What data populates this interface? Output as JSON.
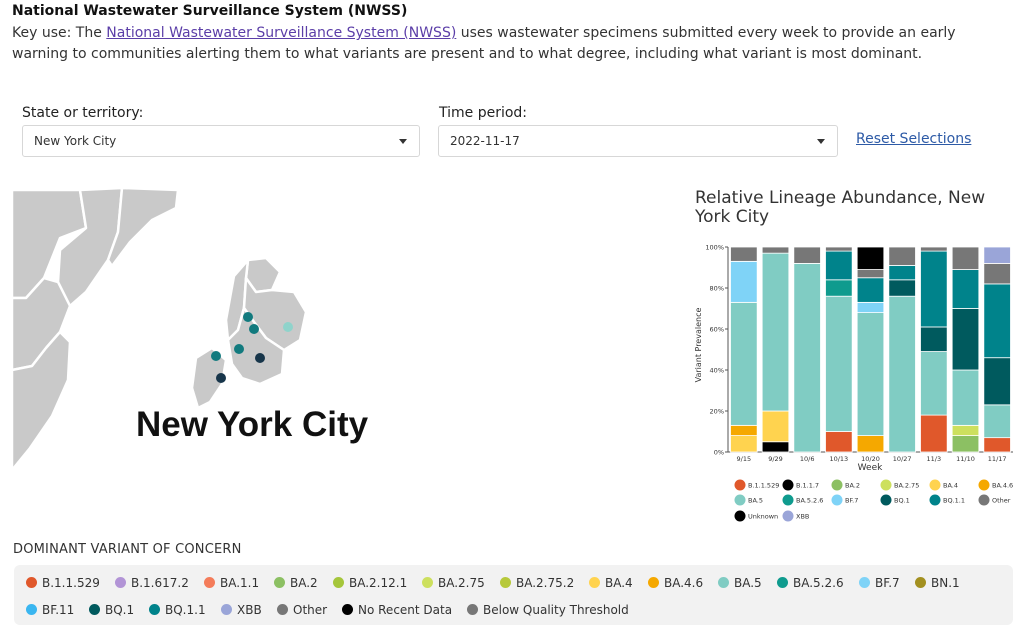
{
  "header": {
    "title": "National Wastewater Surveillance System (NWSS)",
    "keyuse_prefix": "Key use: The ",
    "keyuse_link": "National Wastewater Surveillance System (NWSS)",
    "keyuse_suffix": " uses wastewater specimens submitted every week to provide an early warning to communities alerting them to what variants are present and to what degree, including what variant is most dominant."
  },
  "filters": {
    "state_label": "State or territory:",
    "state_value": "New York City",
    "time_label": "Time period:",
    "time_value": "2022-11-17",
    "reset_label": "Reset Selections"
  },
  "map": {
    "city_label": "New York City",
    "site_markers": [
      "#127a7e",
      "#127a7e",
      "#8fd3cb",
      "#127a7e",
      "#127a7e",
      "#17354a",
      "#17354a"
    ]
  },
  "chart_title": "Relative Lineage Abundance, New York City",
  "chart_data": {
    "type": "bar",
    "stacked": true,
    "xlabel": "Week",
    "ylabel": "Variant Prevalence",
    "ylim": [
      0,
      100
    ],
    "yticks": [
      "0%",
      "20%",
      "40%",
      "60%",
      "80%",
      "100%"
    ],
    "categories": [
      "9/15",
      "9/29",
      "10/6",
      "10/13",
      "10/20",
      "10/27",
      "11/3",
      "11/10",
      "11/17"
    ],
    "series": [
      {
        "name": "B.1.1.529",
        "color": "#e0582b",
        "values": [
          0,
          0,
          0,
          10,
          0,
          0,
          18,
          0,
          7
        ]
      },
      {
        "name": "B.1.1.7",
        "color": "#000000",
        "values": [
          0,
          5,
          0,
          0,
          0,
          0,
          0,
          0,
          0
        ]
      },
      {
        "name": "BA.2",
        "color": "#8cc063",
        "values": [
          0,
          0,
          0,
          0,
          0,
          0,
          0,
          8,
          0
        ]
      },
      {
        "name": "BA.2.75",
        "color": "#cde05e",
        "values": [
          0,
          0,
          0,
          0,
          0,
          0,
          0,
          5,
          0
        ]
      },
      {
        "name": "BA.4",
        "color": "#ffd34f",
        "values": [
          8,
          15,
          0,
          0,
          0,
          0,
          0,
          0,
          0
        ]
      },
      {
        "name": "BA.4.6",
        "color": "#f5a800",
        "values": [
          5,
          0,
          0,
          0,
          8,
          0,
          0,
          0,
          0
        ]
      },
      {
        "name": "BA.5",
        "color": "#80ccc3",
        "values": [
          60,
          77,
          92,
          66,
          60,
          76,
          31,
          27,
          16
        ]
      },
      {
        "name": "BA.5.2.6",
        "color": "#0f9b8e",
        "values": [
          0,
          0,
          0,
          8,
          0,
          0,
          0,
          0,
          0
        ]
      },
      {
        "name": "BF.7",
        "color": "#7fd3f7",
        "values": [
          20,
          0,
          0,
          0,
          5,
          0,
          0,
          0,
          0
        ]
      },
      {
        "name": "BQ.1",
        "color": "#005a5e",
        "values": [
          0,
          0,
          0,
          0,
          0,
          8,
          12,
          30,
          23
        ]
      },
      {
        "name": "BQ.1.1",
        "color": "#00838b",
        "values": [
          0,
          0,
          0,
          14,
          12,
          7,
          37,
          19,
          36
        ]
      },
      {
        "name": "Other",
        "color": "#777777",
        "values": [
          7,
          3,
          8,
          2,
          4,
          9,
          2,
          11,
          10
        ]
      },
      {
        "name": "Unknown",
        "color": "#000000",
        "values": [
          0,
          0,
          0,
          0,
          11,
          0,
          0,
          0,
          0
        ]
      },
      {
        "name": "XBB",
        "color": "#9aa5d8",
        "values": [
          0,
          0,
          0,
          0,
          0,
          0,
          0,
          0,
          8
        ]
      }
    ]
  },
  "dominant_legend": {
    "title": "DOMINANT VARIANT OF CONCERN",
    "items": [
      {
        "label": "B.1.1.529",
        "color": "#e0582b"
      },
      {
        "label": "B.1.617.2",
        "color": "#b294d6"
      },
      {
        "label": "BA.1.1",
        "color": "#f47c5a"
      },
      {
        "label": "BA.2",
        "color": "#8cc063"
      },
      {
        "label": "BA.2.12.1",
        "color": "#a5c63b"
      },
      {
        "label": "BA.2.75",
        "color": "#cde05e"
      },
      {
        "label": "BA.2.75.2",
        "color": "#b7c93a"
      },
      {
        "label": "BA.4",
        "color": "#ffd34f"
      },
      {
        "label": "BA.4.6",
        "color": "#f5a800"
      },
      {
        "label": "BA.5",
        "color": "#80ccc3"
      },
      {
        "label": "BA.5.2.6",
        "color": "#0f9b8e"
      },
      {
        "label": "BF.7",
        "color": "#7fd3f7"
      },
      {
        "label": "BN.1",
        "color": "#a39020"
      },
      {
        "label": "BF.11",
        "color": "#3ab6f0"
      },
      {
        "label": "BQ.1",
        "color": "#005a5e"
      },
      {
        "label": "BQ.1.1",
        "color": "#00838b"
      },
      {
        "label": "XBB",
        "color": "#9aa5d8"
      },
      {
        "label": "Other",
        "color": "#777777"
      },
      {
        "label": "No Recent Data",
        "color": "#000000"
      },
      {
        "label": "Below Quality Threshold",
        "color": "#777777"
      }
    ]
  }
}
